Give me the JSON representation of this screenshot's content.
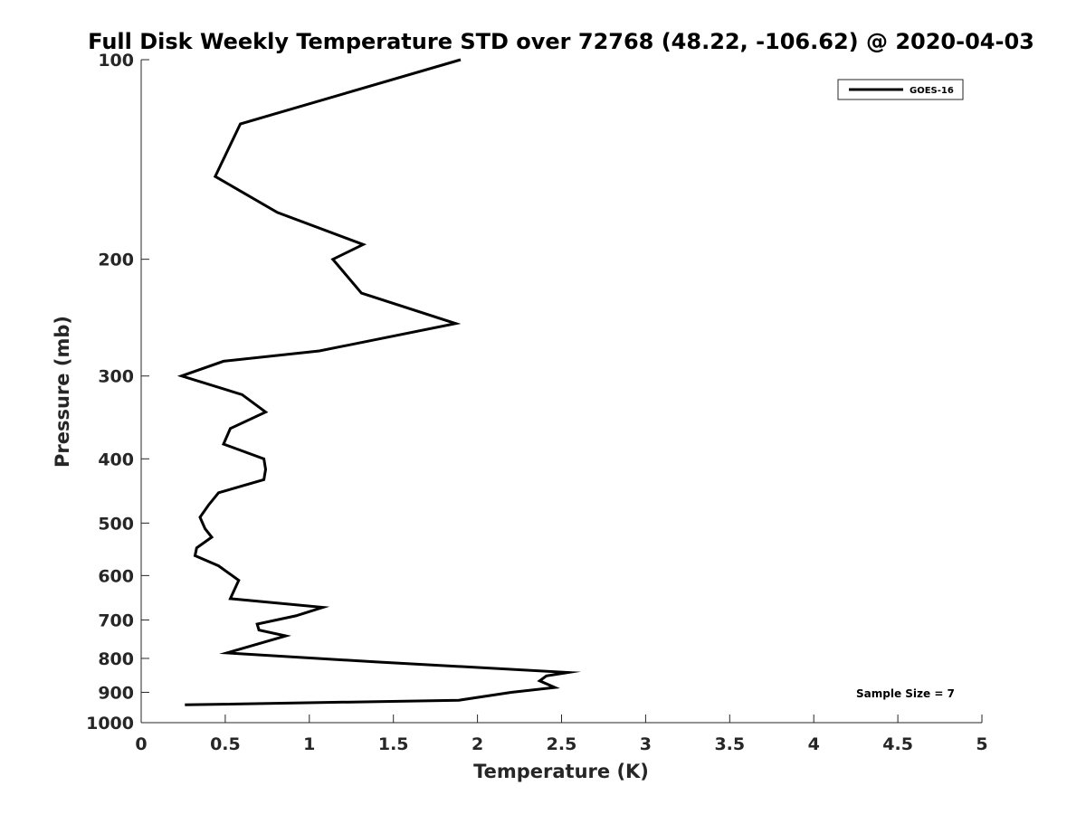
{
  "chart_data": {
    "type": "line",
    "title": "Full Disk Weekly Temperature STD over 72768 (48.22, -106.62) @ 2020-04-03",
    "xlabel": "Temperature (K)",
    "ylabel": "Pressure (mb)",
    "xlim": [
      0,
      5
    ],
    "ylim": [
      100,
      1000
    ],
    "y_scale": "log",
    "y_reversed": true,
    "x_ticks": [
      0,
      0.5,
      1,
      1.5,
      2,
      2.5,
      3,
      3.5,
      4,
      4.5,
      5
    ],
    "x_tick_labels": [
      "0",
      "0.5",
      "1",
      "1.5",
      "2",
      "2.5",
      "3",
      "3.5",
      "4",
      "4.5",
      "5"
    ],
    "y_ticks": [
      100,
      200,
      300,
      400,
      500,
      600,
      700,
      800,
      900,
      1000
    ],
    "y_tick_labels": [
      "100",
      "200",
      "300",
      "400",
      "500",
      "600",
      "700",
      "800",
      "900",
      "1000"
    ],
    "grid": false,
    "legend_position": "top-right",
    "series": [
      {
        "name": "GOES-16",
        "color": "#000000",
        "x": [
          1.9,
          0.59,
          0.44,
          0.81,
          1.32,
          1.14,
          1.31,
          1.87,
          1.06,
          0.49,
          0.24,
          0.6,
          0.74,
          0.53,
          0.49,
          0.73,
          0.74,
          0.73,
          0.46,
          0.4,
          0.35,
          0.38,
          0.42,
          0.33,
          0.32,
          0.46,
          0.58,
          0.53,
          1.08,
          0.92,
          0.69,
          0.7,
          0.86,
          0.51,
          1.4,
          2.54,
          2.41,
          2.37,
          2.46,
          2.2,
          1.89,
          0.26
        ],
        "y": [
          100,
          125,
          150,
          170,
          190,
          200,
          225,
          250,
          275,
          285,
          300,
          320,
          340,
          360,
          380,
          400,
          415,
          430,
          450,
          470,
          490,
          510,
          525,
          545,
          560,
          580,
          610,
          650,
          670,
          690,
          710,
          725,
          740,
          785,
          810,
          840,
          850,
          865,
          885,
          900,
          925,
          940
        ]
      }
    ],
    "annotations": [
      "Sample Size = 7"
    ]
  }
}
